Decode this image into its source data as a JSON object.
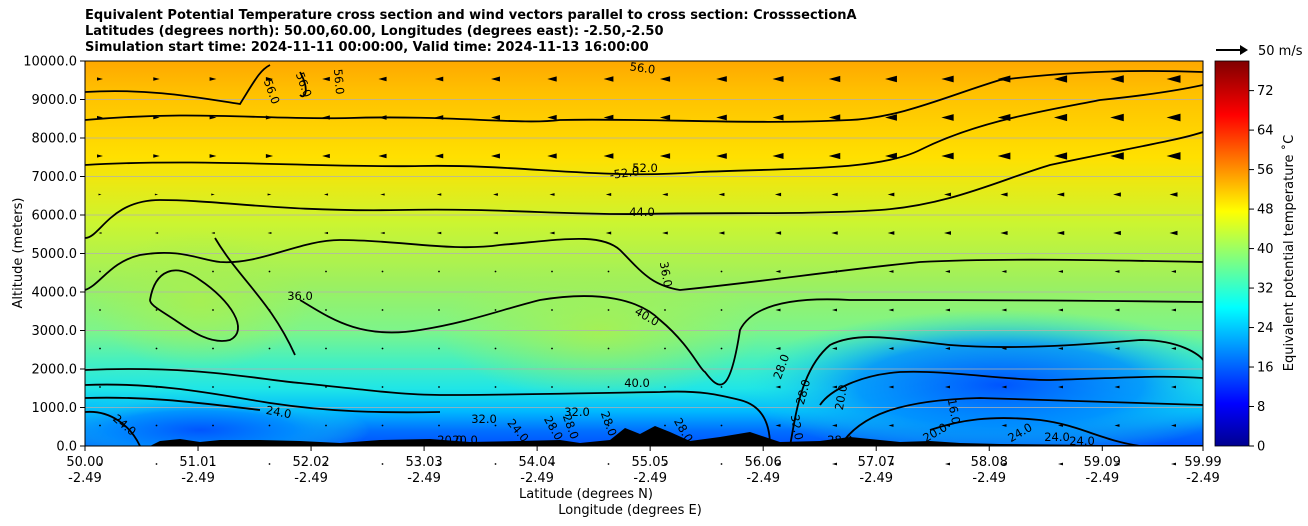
{
  "chart_data": {
    "type": "heatmap",
    "title_lines": [
      "Equivalent Potential Temperature cross section and wind vectors parallel to cross section: CrosssectionA",
      "Latitudes (degrees north): 50.00,60.00, Longitudes (degrees east): -2.50,-2.50",
      "Simulation start time: 2024-11-11 00:00:00, Valid time: 2024-11-13 16:00:00"
    ],
    "ylabel": "Altitude (meters)",
    "xlabel_lines": [
      "Latitude (degrees N)",
      "Longitude (degrees E)"
    ],
    "ylim": [
      0,
      10000
    ],
    "xlim": [
      50.0,
      59.99
    ],
    "y_ticks": [
      "0.0",
      "1000.0",
      "2000.0",
      "3000.0",
      "4000.0",
      "5000.0",
      "6000.0",
      "7000.0",
      "8000.0",
      "9000.0",
      "10000.0"
    ],
    "x_ticks": [
      {
        "lat": "50.00",
        "lon": "-2.49"
      },
      {
        "lat": "51.01",
        "lon": "-2.49"
      },
      {
        "lat": "52.02",
        "lon": "-2.49"
      },
      {
        "lat": "53.03",
        "lon": "-2.49"
      },
      {
        "lat": "54.04",
        "lon": "-2.49"
      },
      {
        "lat": "55.05",
        "lon": "-2.49"
      },
      {
        "lat": "56.06",
        "lon": "-2.49"
      },
      {
        "lat": "57.07",
        "lon": "-2.49"
      },
      {
        "lat": "58.08",
        "lon": "-2.49"
      },
      {
        "lat": "59.09",
        "lon": "-2.49"
      },
      {
        "lat": "59.99",
        "lon": "-2.49"
      }
    ],
    "colorbar": {
      "label": "Equivalent potential temperature ˚C",
      "ticks": [
        "0",
        "8",
        "16",
        "24",
        "32",
        "40",
        "48",
        "56",
        "64",
        "72"
      ],
      "range": [
        0,
        78
      ],
      "colormap": "jet"
    },
    "quiver_key": "50 m/s",
    "contour_labels": [
      "56.0",
      "56.0",
      "56.0",
      "56.0",
      "-52.0",
      "52.0",
      "44.0",
      "36.0",
      "36.0",
      "40.0",
      "40.0",
      "32.0",
      "32.0",
      "28.0",
      "24.0",
      "24.0",
      "20.0",
      "20.0",
      "28.0",
      "16.0",
      "20.0",
      "24.0",
      "24.0",
      "24.0",
      "32.0",
      "28.0",
      "28.0",
      "20.0",
      "24.0",
      "28.0",
      "28.0",
      "28.0"
    ],
    "grid": true
  }
}
